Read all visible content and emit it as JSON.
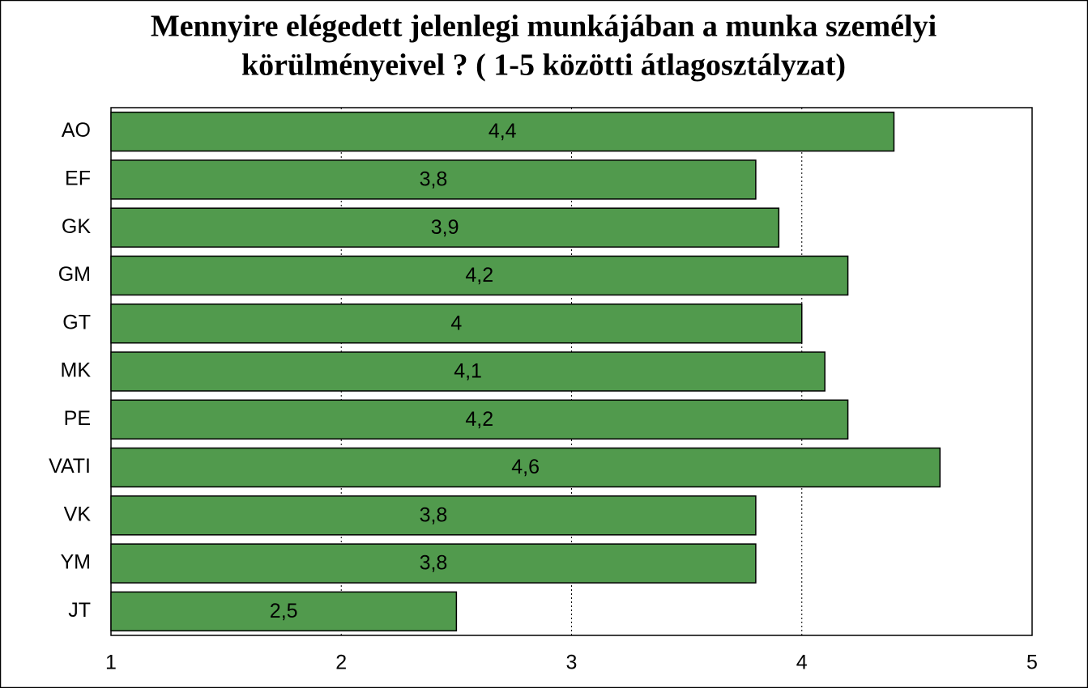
{
  "chart_data": {
    "type": "hbar",
    "title": [
      "Mennyire elégedett jelenlegi munkájában a munka személyi",
      "körülményeivel ? ( 1-5 közötti átlagosztályzat)"
    ],
    "categories": [
      "AO",
      "EF",
      "GK",
      "GM",
      "GT",
      "MK",
      "PE",
      "VATI",
      "VK",
      "YM",
      "JT"
    ],
    "values": [
      4.4,
      3.8,
      3.9,
      4.2,
      4,
      4.1,
      4.2,
      4.6,
      3.8,
      3.8,
      2.5
    ],
    "value_labels": [
      "4,4",
      "3,8",
      "3,9",
      "4,2",
      "4",
      "4,1",
      "4,2",
      "4,6",
      "3,8",
      "3,8",
      "2,5"
    ],
    "color": "#519a4d",
    "xlim": [
      1,
      5
    ],
    "xticks": [
      1,
      2,
      3,
      4,
      5
    ],
    "grid": true
  }
}
